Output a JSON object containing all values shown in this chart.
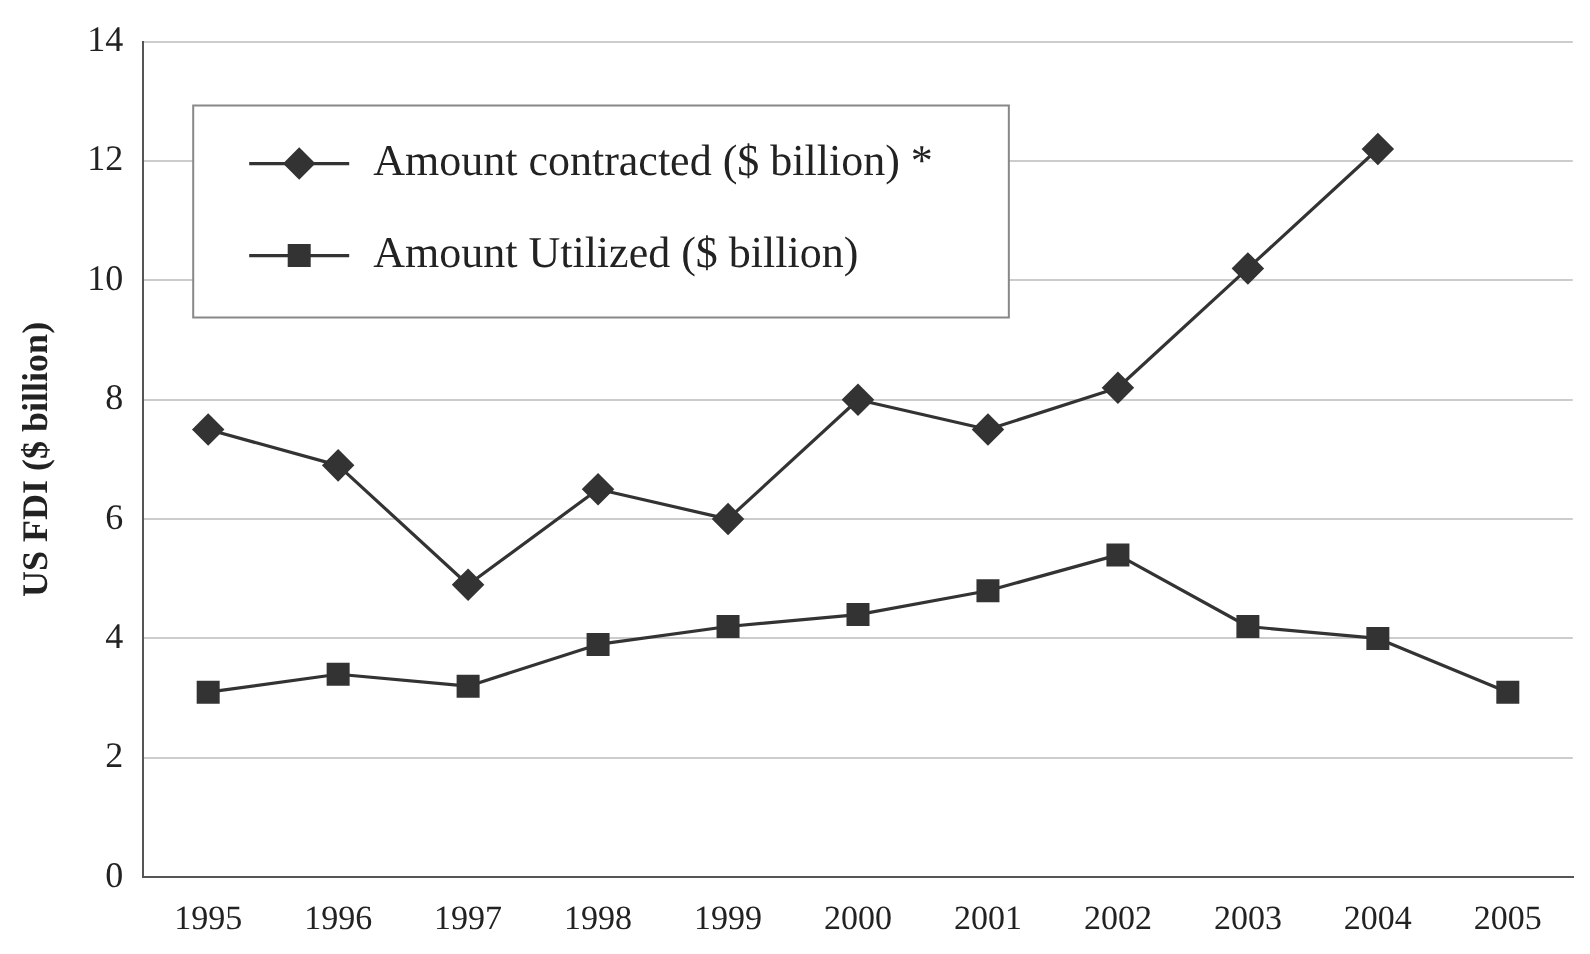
{
  "chart_data": {
    "type": "line",
    "ylabel": "US FDI ($ billion)",
    "categories": [
      "1995",
      "1996",
      "1997",
      "1998",
      "1999",
      "2000",
      "2001",
      "2002",
      "2003",
      "2004",
      "2005"
    ],
    "series": [
      {
        "name": "Amount contracted ($ billion) *",
        "color": "#333333",
        "marker": "diamond",
        "values": [
          7.5,
          6.9,
          4.9,
          6.5,
          6.0,
          8.0,
          7.5,
          8.2,
          10.2,
          12.2,
          null
        ]
      },
      {
        "name": "Amount Utilized ($ billion)",
        "color": "#333333",
        "marker": "square",
        "values": [
          3.1,
          3.4,
          3.2,
          3.9,
          4.2,
          4.4,
          4.8,
          5.4,
          4.2,
          4.0,
          3.1
        ]
      }
    ],
    "ylim": [
      0,
      14
    ],
    "yticks": [
      0,
      2,
      4,
      6,
      8,
      10,
      12,
      14
    ],
    "grid": "y",
    "legend": "top left",
    "line_style": "solid"
  }
}
